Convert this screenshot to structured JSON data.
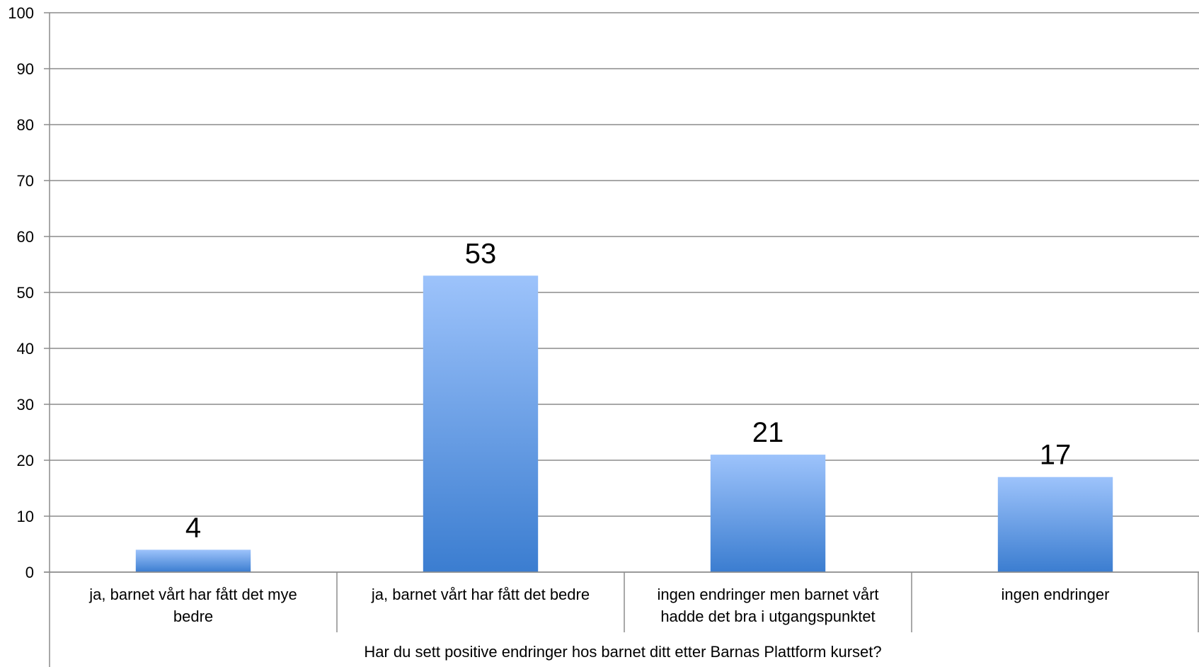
{
  "chart_data": {
    "type": "bar",
    "categories": [
      [
        "ja, barnet vårt har fått det mye",
        "bedre"
      ],
      [
        "ja, barnet vårt har fått det bedre"
      ],
      [
        "ingen endringer men barnet vårt",
        "hadde det bra i utgangspunktet"
      ],
      [
        "ingen endringer"
      ]
    ],
    "values": [
      4,
      53,
      21,
      17
    ],
    "data_labels": [
      "4",
      "53",
      "21",
      "17"
    ],
    "xlabel": "Har du sett positive endringer hos barnet ditt etter Barnas Plattform kurset?",
    "ylabel": "",
    "ylim": [
      0,
      100
    ],
    "yticks": [
      0,
      10,
      20,
      30,
      40,
      50,
      60,
      70,
      80,
      90,
      100
    ],
    "grid": true,
    "legend": "none",
    "colors": {
      "bar_top": "#9dc3fb",
      "bar_bottom": "#3b7dd0",
      "grid": "#8c8c8c"
    }
  }
}
